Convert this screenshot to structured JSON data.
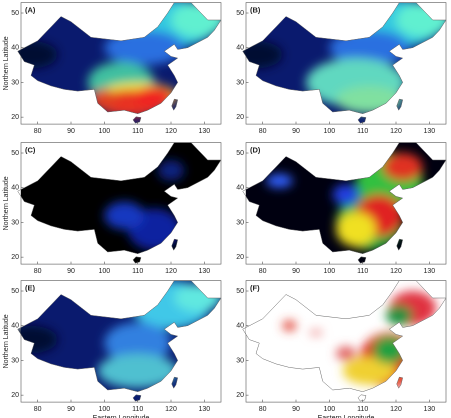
{
  "panels": [
    {
      "label": "(A)"
    },
    {
      "label": "(B)"
    },
    {
      "label": "(C)"
    },
    {
      "label": "(D)"
    },
    {
      "label": "(E)"
    },
    {
      "label": "(F)"
    }
  ],
  "xlim": [
    75,
    135
  ],
  "ylim": [
    18,
    53
  ],
  "xticks": [
    80,
    90,
    100,
    110,
    120,
    130
  ],
  "yticks": [
    20,
    30,
    40,
    50
  ],
  "x_label": "Eastern Longitude",
  "y_label": "Northern Latitude"
}
